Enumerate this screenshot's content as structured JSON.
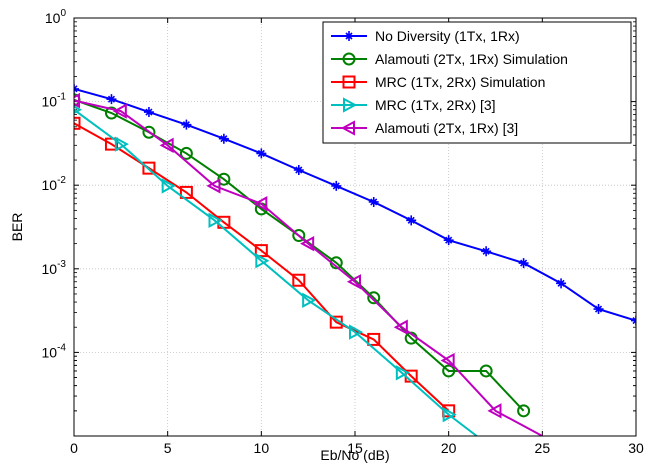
{
  "chart_data": {
    "type": "line",
    "title": "",
    "xlabel": "Eb/No (dB)",
    "ylabel": "BER",
    "xlim": [
      0,
      30
    ],
    "ylim": [
      1e-05,
      1
    ],
    "yscale": "log",
    "grid": true,
    "legend_position": "top-right",
    "x_ticks": [
      {
        "value": 0,
        "label": "0"
      },
      {
        "value": 5,
        "label": "5"
      },
      {
        "value": 10,
        "label": "10"
      },
      {
        "value": 15,
        "label": "15"
      },
      {
        "value": 20,
        "label": "20"
      },
      {
        "value": 25,
        "label": "25"
      },
      {
        "value": 30,
        "label": "30"
      }
    ],
    "y_ticks": [
      {
        "exp": 0,
        "base": "10",
        "sup": "0"
      },
      {
        "exp": -1,
        "base": "10",
        "sup": "-1"
      },
      {
        "exp": -2,
        "base": "10",
        "sup": "-2"
      },
      {
        "exp": -3,
        "base": "10",
        "sup": "-3"
      },
      {
        "exp": -4,
        "base": "10",
        "sup": "-4"
      }
    ],
    "series": [
      {
        "name": "No Diversity (1Tx, 1Rx)",
        "color": "#0000ff",
        "marker": "star",
        "x": [
          0,
          2,
          4,
          6,
          8,
          10,
          12,
          14,
          16,
          18,
          20,
          22,
          24,
          26,
          28,
          30
        ],
        "y": [
          0.142,
          0.107,
          0.075,
          0.053,
          0.036,
          0.024,
          0.0152,
          0.0098,
          0.0063,
          0.0038,
          0.0022,
          0.00162,
          0.00117,
          0.00067,
          0.00033,
          0.00024
        ]
      },
      {
        "name": "Alamouti (2Tx, 1Rx) Simulation",
        "color": "#008000",
        "marker": "circle",
        "x": [
          0,
          2,
          4,
          6,
          8,
          10,
          12,
          14,
          16,
          18,
          20,
          22,
          24
        ],
        "y": [
          0.105,
          0.073,
          0.043,
          0.024,
          0.0118,
          0.0052,
          0.0025,
          0.00118,
          0.00045,
          0.000148,
          6e-05,
          6e-05,
          2e-05
        ]
      },
      {
        "name": "MRC (1Tx, 2Rx) Simulation",
        "color": "#ff0000",
        "marker": "square",
        "x": [
          0,
          2,
          4,
          6,
          8,
          10,
          12,
          14,
          16,
          18,
          20
        ],
        "y": [
          0.055,
          0.031,
          0.016,
          0.0082,
          0.0036,
          0.00165,
          0.00073,
          0.00023,
          0.000143,
          5.2e-05,
          2e-05
        ]
      },
      {
        "name": "MRC (1Tx, 2Rx) [3]",
        "color": "#00bfbf",
        "marker": "triangle-right",
        "x": [
          0,
          2.5,
          5,
          7.5,
          10,
          12.5,
          15,
          17.5,
          20,
          21.5
        ],
        "y": [
          0.08,
          0.031,
          0.0098,
          0.0038,
          0.00125,
          0.00042,
          0.000175,
          5.7e-05,
          1.8e-05,
          1e-05
        ]
      },
      {
        "name": "Alamouti (2Tx, 1Rx) [3]",
        "color": "#bf00bf",
        "marker": "triangle-left",
        "x": [
          0,
          2.5,
          5,
          7.5,
          10,
          12.5,
          15,
          17.5,
          20,
          22.5,
          25
        ],
        "y": [
          0.103,
          0.077,
          0.03,
          0.0098,
          0.006,
          0.002,
          0.0007,
          0.0002,
          8e-05,
          2e-05,
          1e-05
        ]
      }
    ]
  }
}
